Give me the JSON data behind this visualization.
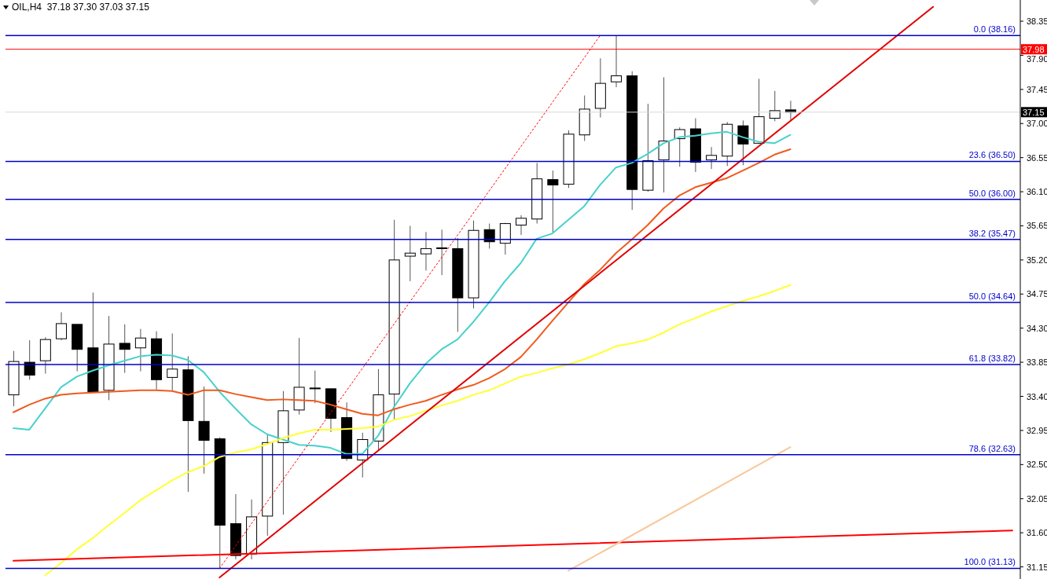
{
  "chart_data": {
    "type": "candlestick",
    "title": "OIL,H4  37.18 37.30 37.03 37.15",
    "categories": [
      null,
      null,
      null,
      null,
      null,
      null,
      null,
      null,
      null,
      null,
      null,
      null,
      null,
      null,
      null,
      null,
      null,
      null,
      null,
      null,
      null,
      null,
      null,
      null,
      null,
      null,
      null,
      null,
      null,
      null,
      null,
      null,
      null,
      null,
      null,
      null,
      null,
      null,
      null,
      null,
      null,
      null,
      null,
      null,
      null,
      null,
      null,
      null,
      null,
      null,
      null,
      null,
      null,
      null,
      null,
      null,
      null,
      null,
      null,
      null,
      null,
      null,
      null,
      null
    ],
    "ohlc": [
      [
        33.42,
        34.0,
        33.27,
        33.86
      ],
      [
        33.85,
        34.14,
        33.62,
        33.68
      ],
      [
        33.87,
        34.18,
        33.7,
        34.15
      ],
      [
        34.16,
        34.51,
        34.14,
        34.36
      ],
      [
        34.35,
        34.35,
        33.73,
        34.02
      ],
      [
        34.04,
        34.77,
        33.46,
        33.46
      ],
      [
        33.48,
        34.46,
        33.35,
        34.09
      ],
      [
        34.1,
        34.35,
        33.71,
        34.02
      ],
      [
        34.04,
        34.29,
        33.73,
        34.17
      ],
      [
        34.16,
        34.26,
        33.49,
        33.62
      ],
      [
        33.65,
        34.23,
        33.48,
        33.76
      ],
      [
        33.75,
        33.93,
        32.14,
        33.08
      ],
      [
        33.07,
        33.53,
        32.38,
        32.82
      ],
      [
        32.84,
        32.86,
        31.13,
        31.7
      ],
      [
        31.72,
        32.11,
        31.25,
        31.3
      ],
      [
        31.32,
        32.04,
        31.25,
        31.81
      ],
      [
        31.82,
        32.9,
        31.56,
        32.79
      ],
      [
        32.79,
        33.47,
        31.84,
        33.21
      ],
      [
        33.22,
        34.17,
        33.16,
        33.52
      ],
      [
        33.51,
        33.74,
        33.31,
        33.5
      ],
      [
        33.5,
        33.5,
        32.93,
        33.11
      ],
      [
        33.12,
        33.32,
        32.55,
        32.58
      ],
      [
        32.56,
        32.92,
        32.33,
        32.83
      ],
      [
        32.81,
        33.76,
        32.69,
        33.42
      ],
      [
        33.43,
        35.73,
        33.09,
        35.2
      ],
      [
        35.25,
        35.65,
        34.92,
        35.29
      ],
      [
        35.28,
        35.57,
        35.06,
        35.35
      ],
      [
        35.36,
        35.6,
        35.0,
        35.35
      ],
      [
        35.35,
        35.49,
        34.25,
        34.7
      ],
      [
        34.7,
        35.72,
        34.56,
        35.59
      ],
      [
        35.6,
        35.68,
        35.35,
        35.44
      ],
      [
        35.42,
        35.69,
        35.27,
        35.68
      ],
      [
        35.66,
        35.79,
        35.53,
        35.75
      ],
      [
        35.74,
        36.48,
        35.68,
        36.27
      ],
      [
        36.26,
        36.38,
        35.55,
        36.19
      ],
      [
        36.2,
        36.91,
        36.15,
        36.86
      ],
      [
        36.85,
        37.37,
        36.77,
        37.19
      ],
      [
        37.2,
        37.86,
        37.08,
        37.53
      ],
      [
        37.55,
        38.16,
        37.48,
        37.63
      ],
      [
        37.63,
        37.69,
        35.86,
        36.13
      ],
      [
        36.12,
        37.26,
        36.1,
        36.51
      ],
      [
        36.52,
        37.61,
        36.09,
        36.77
      ],
      [
        36.8,
        36.95,
        36.43,
        36.92
      ],
      [
        36.93,
        37.07,
        36.36,
        36.49
      ],
      [
        36.52,
        36.69,
        36.4,
        36.58
      ],
      [
        36.57,
        37.02,
        36.44,
        36.99
      ],
      [
        36.97,
        37.04,
        36.45,
        36.73
      ],
      [
        36.74,
        37.59,
        36.73,
        37.09
      ],
      [
        37.07,
        37.43,
        37.03,
        37.17
      ],
      [
        37.18,
        37.3,
        37.03,
        37.15
      ],
      null,
      null,
      null,
      null,
      null,
      null,
      null,
      null,
      null,
      null,
      null,
      null,
      null,
      null
    ],
    "series": [
      {
        "type": "line",
        "color": "#48d1cc",
        "values": [
          32.98,
          32.96,
          33.24,
          33.52,
          33.66,
          33.74,
          33.81,
          33.87,
          33.93,
          33.95,
          33.94,
          33.88,
          33.72,
          33.46,
          33.24,
          33.03,
          32.9,
          32.83,
          32.76,
          32.75,
          32.72,
          32.64,
          32.64,
          32.88,
          33.26,
          33.57,
          33.83,
          34.02,
          34.15,
          34.38,
          34.64,
          34.92,
          35.16,
          35.48,
          35.55,
          35.73,
          35.91,
          36.19,
          36.42,
          36.48,
          36.6,
          36.74,
          36.82,
          36.84,
          36.87,
          36.89,
          36.82,
          36.76,
          36.74,
          36.85,
          null,
          null,
          null,
          null,
          null,
          null,
          null,
          null,
          null,
          null,
          null,
          null,
          null,
          null
        ]
      },
      {
        "type": "line",
        "color": "#f05a1e",
        "values": [
          33.19,
          33.29,
          33.37,
          33.42,
          33.44,
          33.45,
          33.46,
          33.47,
          33.48,
          33.48,
          33.47,
          33.42,
          33.48,
          33.48,
          33.43,
          33.39,
          33.35,
          33.36,
          33.35,
          33.34,
          33.29,
          33.23,
          33.17,
          33.15,
          33.23,
          33.29,
          33.34,
          33.42,
          33.49,
          33.55,
          33.64,
          33.76,
          33.92,
          34.15,
          34.4,
          34.64,
          34.88,
          35.07,
          35.29,
          35.47,
          35.66,
          35.88,
          36.05,
          36.16,
          36.22,
          36.28,
          36.38,
          36.48,
          36.59,
          36.66,
          null,
          null,
          null,
          null,
          null,
          null,
          null,
          null,
          null,
          null,
          null,
          null,
          null,
          null
        ]
      },
      {
        "type": "line",
        "color": "#ffff33",
        "values": [
          null,
          null,
          31.04,
          31.2,
          31.38,
          31.53,
          31.7,
          31.86,
          32.03,
          32.16,
          32.29,
          32.4,
          32.48,
          32.6,
          32.66,
          32.7,
          32.77,
          32.85,
          32.91,
          32.96,
          32.96,
          32.97,
          32.98,
          33.0,
          33.09,
          33.14,
          33.21,
          33.28,
          33.34,
          33.42,
          33.48,
          33.57,
          33.66,
          33.71,
          33.77,
          33.82,
          33.89,
          33.97,
          34.06,
          34.1,
          34.15,
          34.24,
          34.35,
          34.43,
          34.52,
          34.59,
          34.66,
          34.72,
          34.79,
          34.87,
          null,
          null,
          null,
          null,
          null,
          null,
          null,
          null,
          null,
          null,
          null,
          null,
          null,
          null
        ]
      },
      {
        "type": "line",
        "color": "#e00000",
        "values": [
          null,
          null,
          null,
          null,
          null,
          null,
          null,
          null,
          null,
          null,
          null,
          null,
          null,
          31.01,
          null,
          null,
          null,
          null,
          null,
          null,
          null,
          null,
          null,
          null,
          null,
          null,
          null,
          null,
          null,
          null,
          null,
          null,
          null,
          null,
          null,
          null,
          null,
          null,
          null,
          null,
          null,
          null,
          null,
          null,
          null,
          null,
          null,
          null,
          null,
          null,
          null,
          null,
          null,
          null,
          null,
          null,
          null,
          null,
          38.54,
          null,
          null,
          null,
          null,
          null
        ]
      },
      {
        "type": "line",
        "color": "#ff0000",
        "values": [
          31.23,
          null,
          null,
          null,
          null,
          null,
          null,
          null,
          null,
          null,
          null,
          null,
          null,
          null,
          null,
          null,
          null,
          null,
          null,
          null,
          null,
          null,
          null,
          null,
          null,
          null,
          null,
          null,
          null,
          null,
          null,
          null,
          null,
          null,
          null,
          null,
          null,
          null,
          null,
          null,
          null,
          null,
          null,
          null,
          null,
          null,
          null,
          null,
          null,
          null,
          null,
          null,
          null,
          null,
          null,
          null,
          null,
          null,
          null,
          null,
          null,
          null,
          null,
          31.63
        ]
      },
      {
        "type": "line",
        "color": "#ff0000",
        "line_style": "dotted",
        "values": [
          null,
          null,
          null,
          null,
          null,
          null,
          null,
          null,
          null,
          null,
          null,
          null,
          null,
          31.13,
          null,
          null,
          null,
          null,
          null,
          null,
          null,
          null,
          null,
          null,
          null,
          null,
          null,
          null,
          null,
          null,
          null,
          null,
          null,
          null,
          null,
          null,
          null,
          38.16,
          null,
          null,
          null,
          null,
          null,
          null,
          null,
          null,
          null,
          null,
          null,
          null,
          null,
          null,
          null,
          null,
          null,
          null,
          null,
          null,
          null,
          null,
          null,
          null,
          null,
          null
        ]
      },
      {
        "type": "line",
        "color": "#f7c99a",
        "values": [
          null,
          null,
          null,
          null,
          null,
          null,
          null,
          null,
          null,
          null,
          null,
          null,
          null,
          null,
          null,
          null,
          null,
          null,
          null,
          null,
          null,
          null,
          null,
          null,
          null,
          null,
          null,
          null,
          null,
          null,
          null,
          null,
          null,
          null,
          null,
          31.1,
          null,
          null,
          null,
          null,
          null,
          null,
          null,
          null,
          null,
          null,
          null,
          null,
          null,
          32.73,
          null,
          null,
          null,
          null,
          null,
          null,
          null,
          null,
          null,
          null,
          null,
          null,
          null,
          null
        ]
      }
    ],
    "ref_lines": [
      {
        "axis": "y",
        "value": 38.16,
        "label": "0.0 (38.16)",
        "color": "#0000c8"
      },
      {
        "axis": "y",
        "value": 36.5,
        "label": "23.6 (36.50)",
        "color": "#0000c8"
      },
      {
        "axis": "y",
        "value": 36.0,
        "label": "50.0 (36.00)",
        "color": "#0000c8"
      },
      {
        "axis": "y",
        "value": 35.47,
        "label": "38.2 (35.47)",
        "color": "#0000c8"
      },
      {
        "axis": "y",
        "value": 34.64,
        "label": "50.0 (34.64)",
        "color": "#0000c8"
      },
      {
        "axis": "y",
        "value": 33.82,
        "label": "61.8 (33.82)",
        "color": "#0000c8"
      },
      {
        "axis": "y",
        "value": 32.63,
        "label": "78.6 (32.63)",
        "color": "#0000c8"
      },
      {
        "axis": "y",
        "value": 31.13,
        "label": "100.0 (31.13)",
        "color": "#0000c8"
      },
      {
        "axis": "y",
        "value": 37.98,
        "label": "37.98",
        "color": "#ff0000"
      },
      {
        "axis": "y",
        "value": 37.15,
        "label": "37.15",
        "color": "#d8d8d8"
      }
    ],
    "ylim": [
      30.99,
      38.63
    ],
    "yticks": [
      31.15,
      {
        "value": 31.6,
        "label": "31.60"
      },
      32.05,
      {
        "value": 32.5,
        "label": "32.50"
      },
      32.95,
      {
        "value": 33.4,
        "label": "33.40"
      },
      33.85,
      {
        "value": 34.3,
        "label": "34.30"
      },
      34.75,
      {
        "value": 35.2,
        "label": "35.20"
      },
      35.65,
      {
        "value": 36.1,
        "label": "36.10"
      },
      36.55,
      {
        "value": 37.0,
        "label": "37.00"
      },
      37.45,
      {
        "value": 37.9,
        "label": "37.90"
      },
      38.35
    ],
    "tick_labels": "y",
    "marker": "none"
  }
}
